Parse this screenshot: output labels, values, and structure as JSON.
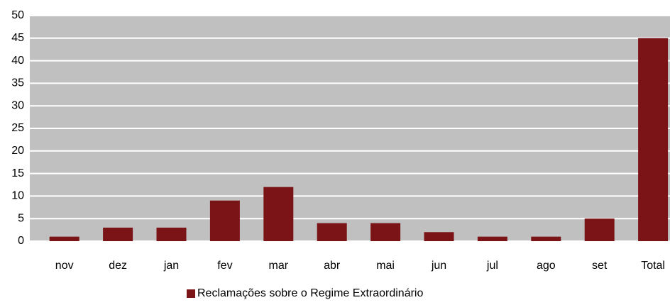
{
  "chart_data": {
    "type": "bar",
    "categories": [
      "nov",
      "dez",
      "jan",
      "fev",
      "mar",
      "abr",
      "mai",
      "jun",
      "jul",
      "ago",
      "set",
      "Total"
    ],
    "series": [
      {
        "name": "Reclamações sobre o Regime Extraordinário",
        "color": "#7b1416",
        "values": [
          1,
          3,
          3,
          9,
          12,
          4,
          4,
          2,
          1,
          1,
          5,
          45
        ]
      }
    ],
    "ylim": [
      0,
      50
    ],
    "yticks": [
      0,
      5,
      10,
      15,
      20,
      25,
      30,
      35,
      40,
      45,
      50
    ],
    "grid": true,
    "legend": "bottom"
  }
}
